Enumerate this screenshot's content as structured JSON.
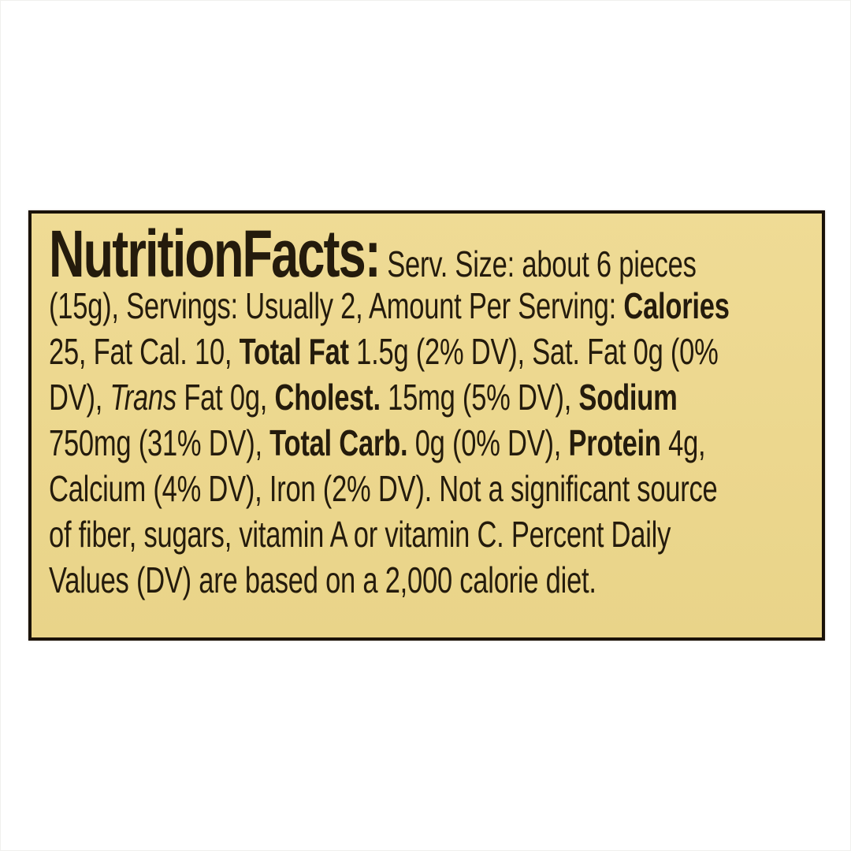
{
  "page": {
    "background_color": "#ffffff"
  },
  "label": {
    "background_color": "#ecd78e",
    "border_color": "#1a1208",
    "text_color": "#241b0c",
    "title": "NutritionFacts:",
    "lines": {
      "l1_rest": " Serv. Size: about 6 pieces",
      "l2_a": "(15g), Servings: Usually 2, Amount Per Serving: ",
      "l2_b": "Calories",
      "l3_a": "25, Fat Cal. 10, ",
      "l3_b": "Total Fat",
      "l3_c": " 1.5g (2% DV), Sat. Fat 0g (0%",
      "l4_a": "DV), ",
      "l4_b": "Trans",
      "l4_c": " Fat 0g, ",
      "l4_d": "Cholest.",
      "l4_e": " 15mg (5% DV), ",
      "l4_f": "Sodium",
      "l5_a": "750mg (31% DV), ",
      "l5_b": "Total Carb.",
      "l5_c": " 0g (0% DV), ",
      "l5_d": "Protein",
      "l5_e": " 4g,",
      "l6": "Calcium (4% DV), Iron (2% DV). Not a significant source",
      "l7": "of fiber, sugars, vitamin A or vitamin C. Percent Daily",
      "l8": "Values (DV) are based on a 2,000 calorie diet."
    },
    "facts": {
      "serving_size": "about 6 pieces (15g)",
      "servings": "Usually 2",
      "calories": "25",
      "fat_calories": "10",
      "total_fat": "1.5g (2% DV)",
      "saturated_fat": "0g (0% DV)",
      "trans_fat": "0g",
      "cholesterol": "15mg (5% DV)",
      "sodium": "750mg (31% DV)",
      "total_carbohydrate": "0g (0% DV)",
      "protein": "4g",
      "calcium": "4% DV",
      "iron": "2% DV",
      "not_significant_source": "fiber, sugars, vitamin A, vitamin C",
      "footnote": "Percent Daily Values (DV) are based on a 2,000 calorie diet."
    }
  }
}
